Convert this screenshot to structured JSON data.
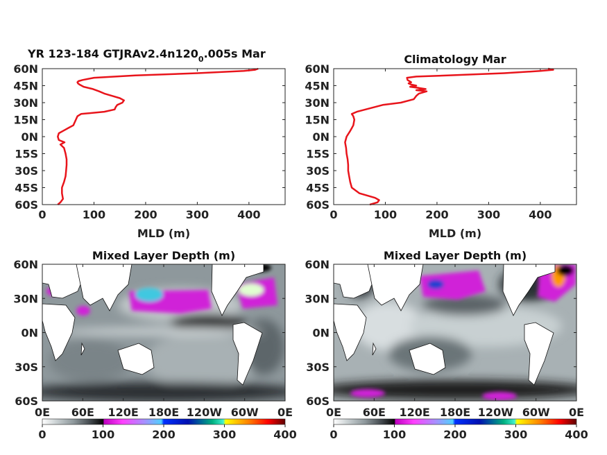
{
  "chart_data": [
    {
      "type": "line",
      "title": "YR 123-184 GTJRAv2.4n120",
      "title_sub": "0",
      "title_rest": ".005s Mar",
      "xlabel": "MLD (m)",
      "ylabel": "",
      "xlim": [
        0,
        470
      ],
      "ylim": [
        -60,
        60
      ],
      "x_ticks": [
        "0",
        "100",
        "200",
        "300",
        "400"
      ],
      "y_ticks": [
        "60N",
        "45N",
        "30N",
        "15N",
        "0N",
        "15S",
        "30S",
        "45S",
        "60S"
      ],
      "series": [
        {
          "color": "#e8141b",
          "lat": [
            -60,
            -58,
            -55,
            -50,
            -45,
            -40,
            -35,
            -30,
            -25,
            -20,
            -15,
            -10,
            -7,
            -5,
            -3,
            0,
            3,
            5,
            8,
            10,
            15,
            18,
            20,
            22,
            24,
            26,
            28,
            30,
            32,
            34,
            36,
            38,
            40,
            42,
            44,
            46,
            47,
            48,
            49,
            50,
            52,
            54,
            56,
            58,
            59,
            60
          ],
          "mld": [
            30,
            35,
            40,
            38,
            38,
            42,
            45,
            46,
            47,
            47,
            45,
            42,
            35,
            43,
            32,
            30,
            32,
            40,
            52,
            60,
            65,
            68,
            75,
            120,
            140,
            142,
            145,
            155,
            158,
            150,
            135,
            120,
            110,
            98,
            80,
            72,
            69,
            68,
            70,
            78,
            100,
            180,
            300,
            390,
            412,
            418
          ]
        }
      ]
    },
    {
      "type": "line",
      "title": "Climatology Mar",
      "xlabel": "MLD (m)",
      "ylabel": "",
      "xlim": [
        0,
        470
      ],
      "ylim": [
        -60,
        60
      ],
      "x_ticks": [
        "0",
        "100",
        "200",
        "300",
        "400"
      ],
      "y_ticks": [
        "60N",
        "45N",
        "30N",
        "15N",
        "0N",
        "15S",
        "30S",
        "45S",
        "60S"
      ],
      "series": [
        {
          "color": "#e8141b",
          "lat": [
            -60,
            -58,
            -56,
            -54,
            -52,
            -50,
            -45,
            -40,
            -35,
            -30,
            -25,
            -20,
            -15,
            -10,
            -5,
            0,
            5,
            10,
            15,
            18,
            20,
            22,
            25,
            28,
            30,
            33,
            36,
            38,
            40,
            41,
            42,
            43,
            44,
            45,
            46,
            47,
            48,
            50,
            52,
            53,
            54,
            56,
            58,
            59,
            60
          ],
          "mld": [
            70,
            85,
            88,
            80,
            65,
            50,
            35,
            32,
            30,
            28,
            28,
            27,
            25,
            24,
            22,
            25,
            32,
            38,
            40,
            38,
            35,
            45,
            70,
            95,
            130,
            155,
            160,
            165,
            180,
            160,
            178,
            165,
            148,
            160,
            150,
            145,
            150,
            143,
            142,
            160,
            220,
            330,
            400,
            425,
            415
          ]
        }
      ]
    },
    {
      "type": "heatmap",
      "title": "Mixed Layer Depth (m)",
      "x_ticks": [
        "0E",
        "60E",
        "120E",
        "180E",
        "120W",
        "60W",
        "0E"
      ],
      "y_ticks": [
        "60N",
        "30N",
        "0N",
        "30S",
        "60S"
      ],
      "ylim": [
        -60,
        60
      ],
      "colorbar": {
        "range": [
          0,
          400
        ],
        "ticks": [
          "0",
          "100",
          "200",
          "300",
          "400"
        ]
      }
    },
    {
      "type": "heatmap",
      "title": "Mixed Layer Depth (m)",
      "x_ticks": [
        "0E",
        "60E",
        "120E",
        "180E",
        "120W",
        "60W",
        "0E"
      ],
      "y_ticks": [
        "60N",
        "30N",
        "0N",
        "30S",
        "60S"
      ],
      "ylim": [
        -60,
        60
      ],
      "colorbar": {
        "range": [
          0,
          400
        ],
        "ticks": [
          "0",
          "100",
          "200",
          "300",
          "400"
        ]
      }
    }
  ],
  "colors": {
    "profile_line": "#e8141b",
    "land": "#ffffff",
    "colormap": [
      "#ffffff",
      "#b4bcbe",
      "#808a8e",
      "#3a3f44",
      "#0a0a0a",
      "#d000d0",
      "#ff55ff",
      "#aa88ff",
      "#44ccff",
      "#1040ff",
      "#0010a0",
      "#00c070",
      "#40f0d0",
      "#ffff00",
      "#ff8000",
      "#ff0000",
      "#800000"
    ]
  }
}
